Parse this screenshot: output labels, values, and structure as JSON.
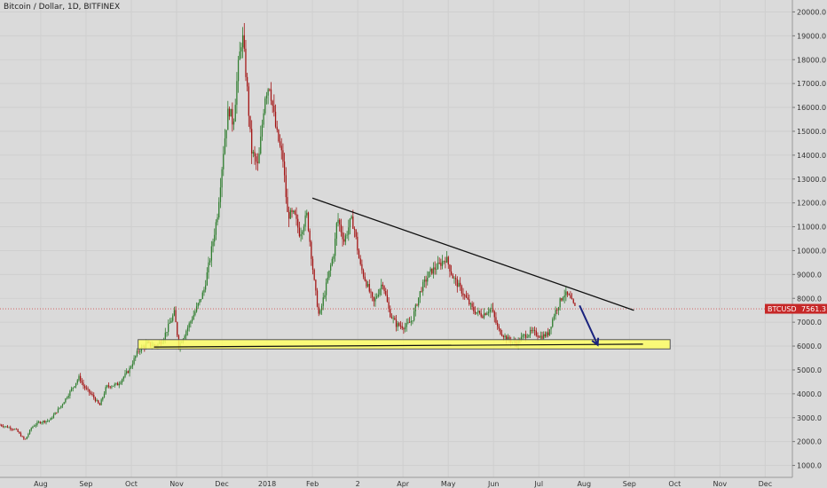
{
  "header": {
    "title": "Bitcoin / Dollar, 1D, BITFINEX"
  },
  "price_tag": {
    "symbol": "BTCUSD",
    "value": "7561.3"
  },
  "colors": {
    "background": "#dadada",
    "up_candle": "#2f7d2f",
    "down_candle": "#a31414",
    "trendline": "#111111",
    "support_zone": "#ffff66",
    "arrow": "#1a237e",
    "price_line": "#d05050"
  },
  "chart_data": {
    "type": "candlestick",
    "title": "Bitcoin / Dollar, 1D, BITFINEX",
    "symbol": "BTCUSD",
    "last_price": 7561.3,
    "y_ticks": [
      1000,
      2000,
      3000,
      4000,
      5000,
      6000,
      7000,
      8000,
      9000,
      10000,
      11000,
      12000,
      13000,
      14000,
      15000,
      16000,
      17000,
      18000,
      19000,
      20000
    ],
    "y_tick_labels": [
      "1000.0",
      "2000.0",
      "3000.0",
      "4000.0",
      "5000.0",
      "6000.0",
      "7000.0",
      "8000.0",
      "9000.0",
      "10000.0",
      "11000.0",
      "12000.0",
      "13000.0",
      "14000.0",
      "15000.0",
      "16000.0",
      "17000.0",
      "18000.0",
      "19000.0",
      "20000.0"
    ],
    "ylim": [
      500,
      20500
    ],
    "x_ticks": [
      "Aug",
      "Sep",
      "Oct",
      "Nov",
      "Dec",
      "2018",
      "Feb",
      "2",
      "Apr",
      "May",
      "Jun",
      "Jul",
      "Aug",
      "Sep",
      "Oct",
      "Nov",
      "Dec"
    ],
    "x_range_months": [
      0,
      17.5
    ],
    "x_tick_months": [
      0.9,
      1.9,
      2.9,
      3.9,
      4.9,
      5.9,
      6.9,
      7.9,
      8.9,
      9.9,
      10.9,
      11.9,
      12.9,
      13.9,
      14.9,
      15.9,
      16.9
    ],
    "price_path": [
      [
        0.0,
        2700
      ],
      [
        0.35,
        2500
      ],
      [
        0.55,
        2050
      ],
      [
        0.7,
        2600
      ],
      [
        0.85,
        2800
      ],
      [
        1.1,
        2900
      ],
      [
        1.35,
        3500
      ],
      [
        1.55,
        4100
      ],
      [
        1.75,
        4700
      ],
      [
        1.85,
        4300
      ],
      [
        2.05,
        3900
      ],
      [
        2.2,
        3500
      ],
      [
        2.35,
        4300
      ],
      [
        2.6,
        4400
      ],
      [
        2.85,
        5000
      ],
      [
        3.05,
        5800
      ],
      [
        3.25,
        6100
      ],
      [
        3.45,
        6000
      ],
      [
        3.6,
        6300
      ],
      [
        3.85,
        7400
      ],
      [
        3.95,
        6000
      ],
      [
        4.1,
        6600
      ],
      [
        4.3,
        7400
      ],
      [
        4.5,
        8300
      ],
      [
        4.65,
        9800
      ],
      [
        4.8,
        11500
      ],
      [
        4.95,
        14500
      ],
      [
        5.05,
        16000
      ],
      [
        5.15,
        15300
      ],
      [
        5.25,
        17500
      ],
      [
        5.35,
        19100
      ],
      [
        5.45,
        17000
      ],
      [
        5.55,
        14200
      ],
      [
        5.7,
        13500
      ],
      [
        5.85,
        16500
      ],
      [
        5.95,
        17000
      ],
      [
        6.1,
        15000
      ],
      [
        6.25,
        13800
      ],
      [
        6.35,
        11500
      ],
      [
        6.5,
        11500
      ],
      [
        6.62,
        10700
      ],
      [
        6.78,
        11500
      ],
      [
        6.95,
        8500
      ],
      [
        7.05,
        7200
      ],
      [
        7.2,
        8500
      ],
      [
        7.38,
        10000
      ],
      [
        7.45,
        11400
      ],
      [
        7.6,
        10400
      ],
      [
        7.75,
        11300
      ],
      [
        7.82,
        11000
      ],
      [
        7.95,
        9400
      ],
      [
        8.1,
        8600
      ],
      [
        8.25,
        7800
      ],
      [
        8.45,
        8700
      ],
      [
        8.6,
        7400
      ],
      [
        8.75,
        6900
      ],
      [
        8.95,
        6800
      ],
      [
        9.1,
        7100
      ],
      [
        9.3,
        8400
      ],
      [
        9.5,
        9100
      ],
      [
        9.7,
        9400
      ],
      [
        9.85,
        9700
      ],
      [
        10.0,
        8900
      ],
      [
        10.2,
        8300
      ],
      [
        10.45,
        7500
      ],
      [
        10.65,
        7300
      ],
      [
        10.85,
        7600
      ],
      [
        11.0,
        6700
      ],
      [
        11.2,
        6300
      ],
      [
        11.4,
        6100
      ],
      [
        11.55,
        6400
      ],
      [
        11.75,
        6600
      ],
      [
        11.95,
        6400
      ],
      [
        12.1,
        6500
      ],
      [
        12.25,
        7400
      ],
      [
        12.45,
        8200
      ],
      [
        12.55,
        8100
      ],
      [
        12.7,
        7600
      ],
      [
        12.72,
        7561
      ]
    ],
    "annotations": {
      "trendline": {
        "from": [
          6.9,
          12200
        ],
        "to": [
          14.0,
          7500
        ]
      },
      "support_zone": {
        "x": [
          3.05,
          14.8
        ],
        "y": [
          5880,
          6270
        ]
      },
      "support_line": {
        "from": [
          3.4,
          5960
        ],
        "to": [
          14.2,
          6080
        ]
      },
      "arrow": {
        "from": [
          12.8,
          7700
        ],
        "to": [
          13.2,
          6050
        ]
      }
    }
  }
}
